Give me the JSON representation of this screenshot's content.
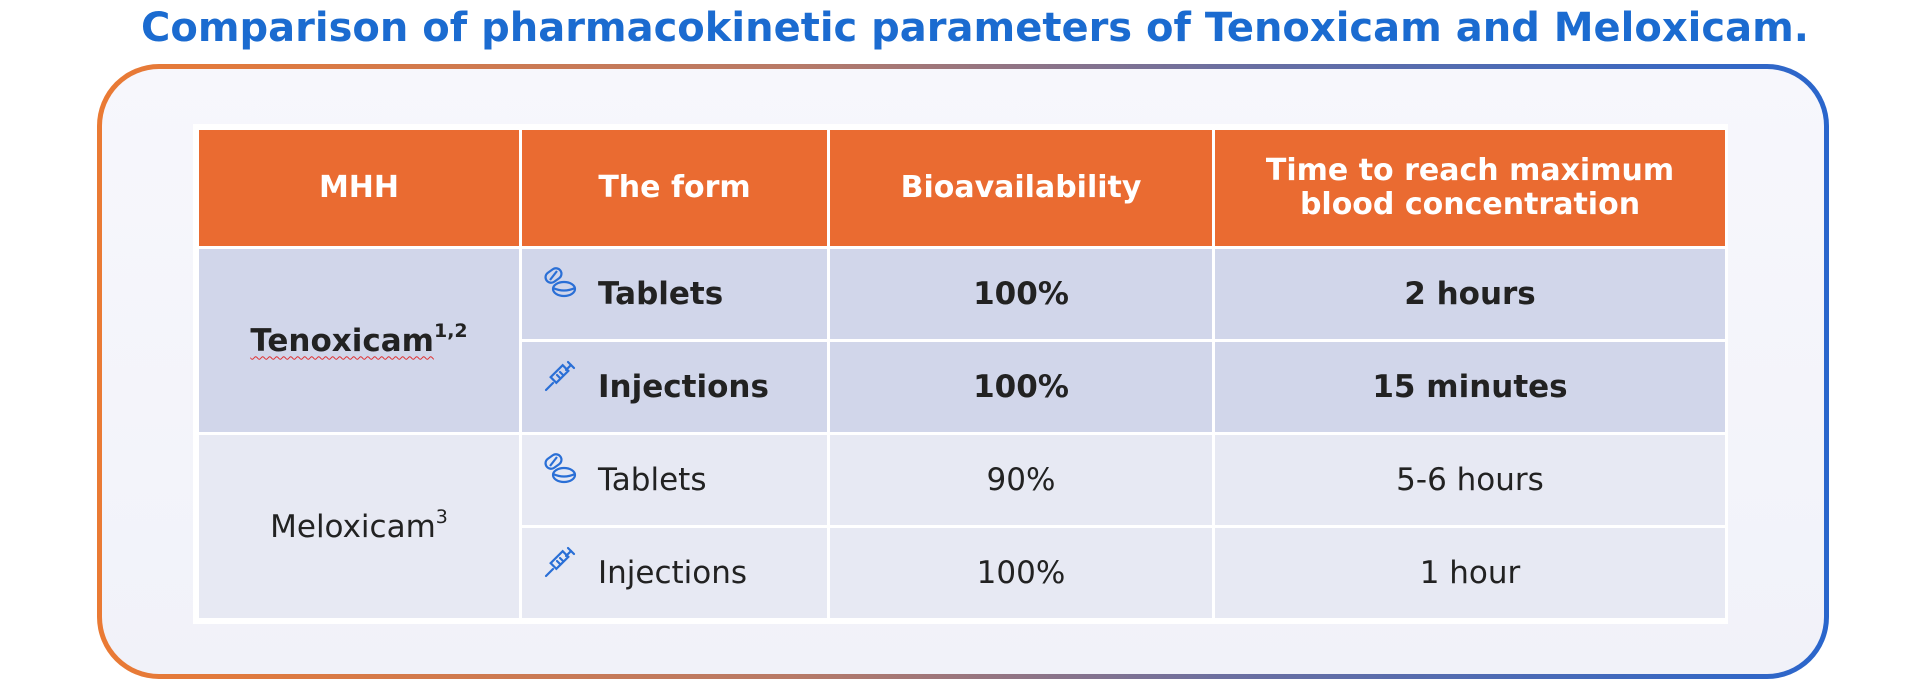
{
  "title": "Comparison of pharmacokinetic parameters of Tenoxicam and Meloxicam.",
  "table": {
    "headers": [
      "MHH",
      "The form",
      "Bioavailability",
      "Time to reach maximum blood concentration"
    ],
    "header_lines": [
      "Time to reach maximum",
      "blood concentration"
    ],
    "rows": [
      {
        "drug": "Tenoxicam",
        "drug_sup": "1,2",
        "forms": [
          {
            "form": "Tablets",
            "icon": "pills-icon",
            "bioavailability": "100%",
            "time": "2 hours"
          },
          {
            "form": "Injections",
            "icon": "syringe-icon",
            "bioavailability": "100%",
            "time": "15 minutes"
          }
        ]
      },
      {
        "drug": "Meloxicam",
        "drug_sup": "3",
        "forms": [
          {
            "form": "Tablets",
            "icon": "pills-icon",
            "bioavailability": "90%",
            "time": "5-6 hours"
          },
          {
            "form": "Injections",
            "icon": "syringe-icon",
            "bioavailability": "100%",
            "time": "1 hour"
          }
        ]
      }
    ]
  },
  "colors": {
    "title": "#1b6bd0",
    "header_bg": "#ea6b31",
    "row_tenoxicam": "#d1d6ea",
    "row_meloxicam": "#e7e9f3",
    "icon": "#2a6fd6"
  }
}
